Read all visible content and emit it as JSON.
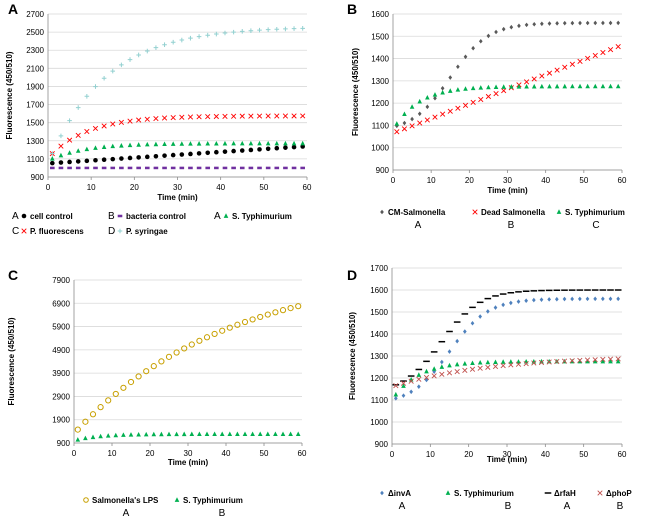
{
  "chart_data": [
    {
      "panel": "A",
      "type": "scatter",
      "xlabel": "Time (min)",
      "ylabel": "Fluorescence  (450/510)",
      "xlim": [
        0,
        60
      ],
      "ylim": [
        900,
        2700
      ],
      "xticks": [
        0,
        10,
        20,
        30,
        40,
        50,
        60
      ],
      "yticks": [
        900,
        1100,
        1300,
        1500,
        1700,
        1900,
        2100,
        2300,
        2500,
        2700
      ],
      "series": [
        {
          "name": "cell control",
          "prefix": "A",
          "color": "#000000",
          "marker": "circle",
          "model": "lin",
          "y0": 1050,
          "y1": 1240
        },
        {
          "name": "bacteria control",
          "prefix": "B",
          "color": "#7030a0",
          "marker": "square",
          "model": "const",
          "y0": 1000
        },
        {
          "name": "S. Typhimurium",
          "prefix": "A",
          "color": "#00b050",
          "marker": "triangle",
          "model": "exp",
          "y0": 1080,
          "ymax": 1270,
          "k": 0.12
        },
        {
          "name": "P. fluorescens",
          "prefix": "C",
          "color": "#ff0000",
          "marker": "x",
          "model": "exp",
          "y0": 1110,
          "ymax": 1575,
          "k": 0.11
        },
        {
          "name": "P. syringae",
          "prefix": "D",
          "color": "#92d0d0",
          "marker": "plus",
          "model": "exp",
          "y0": 1050,
          "ymax": 2560,
          "k": 0.075
        }
      ]
    },
    {
      "panel": "B",
      "type": "scatter",
      "xlabel": "Time (min)",
      "ylabel": "Fluorescence  (450/510)",
      "xlim": [
        0,
        60
      ],
      "ylim": [
        900,
        1600
      ],
      "xticks": [
        0,
        10,
        20,
        30,
        40,
        50,
        60
      ],
      "yticks": [
        900,
        1000,
        1100,
        1200,
        1300,
        1400,
        1500,
        1600
      ],
      "series": [
        {
          "name": "CM-Salmonella",
          "group": "A",
          "color": "#595959",
          "marker": "diamond",
          "model": "sig",
          "y0": 1070,
          "ymax": 1560,
          "mid": 15,
          "s": 5
        },
        {
          "name": "Dead Salmonella",
          "group": "B",
          "color": "#ff0000",
          "marker": "x",
          "model": "lin",
          "y0": 1065,
          "y1": 1460
        },
        {
          "name": "S. Typhimurium",
          "group": "C",
          "color": "#00b050",
          "marker": "triangle",
          "model": "exp",
          "y0": 1080,
          "ymax": 1275,
          "k": 0.15
        }
      ]
    },
    {
      "panel": "C",
      "type": "scatter",
      "xlabel": "Time (min)",
      "ylabel": "Fluorescence  (450/510)",
      "xlim": [
        0,
        60
      ],
      "ylim": [
        900,
        7900
      ],
      "xticks": [
        0,
        10,
        20,
        30,
        40,
        50,
        60
      ],
      "yticks": [
        900,
        1900,
        2900,
        3900,
        4900,
        5900,
        6900,
        7900
      ],
      "series": [
        {
          "name": "Salmonella's LPS",
          "group": "A",
          "color": "#c8a000",
          "marker": "ring",
          "model": "sat",
          "y0": 1300,
          "ymax": 8400,
          "k": 0.025
        },
        {
          "name": "S. Typhimurium",
          "group": "B",
          "color": "#00b050",
          "marker": "triangle",
          "model": "exp",
          "y0": 1000,
          "ymax": 1280,
          "k": 0.15
        }
      ]
    },
    {
      "panel": "D",
      "type": "scatter",
      "xlabel": "Time (min)",
      "ylabel": "Fluorescence  (450/510)",
      "xlim": [
        0,
        60
      ],
      "ylim": [
        900,
        1700
      ],
      "xticks": [
        0,
        10,
        20,
        30,
        40,
        50,
        60
      ],
      "yticks": [
        900,
        1000,
        1100,
        1200,
        1300,
        1400,
        1500,
        1600,
        1700
      ],
      "series": [
        {
          "name": "ΔinvA",
          "group": "A",
          "color": "#4f81bd",
          "marker": "diamond",
          "model": "sig",
          "y0": 1080,
          "ymax": 1560,
          "mid": 15,
          "s": 5
        },
        {
          "name": "S. Typhimurium",
          "group": "B",
          "color": "#00b050",
          "marker": "triangle",
          "model": "exp",
          "y0": 1100,
          "ymax": 1275,
          "k": 0.15
        },
        {
          "name": "ΔrfaH",
          "group": "A",
          "color": "#000000",
          "marker": "dash",
          "model": "sig",
          "y0": 1130,
          "ymax": 1600,
          "mid": 13,
          "s": 5
        },
        {
          "name": "ΔphoP",
          "group": "B",
          "color": "#c0504d",
          "marker": "x",
          "model": "sat",
          "y0": 1160,
          "ymax": 1300,
          "k": 0.04
        }
      ]
    }
  ]
}
